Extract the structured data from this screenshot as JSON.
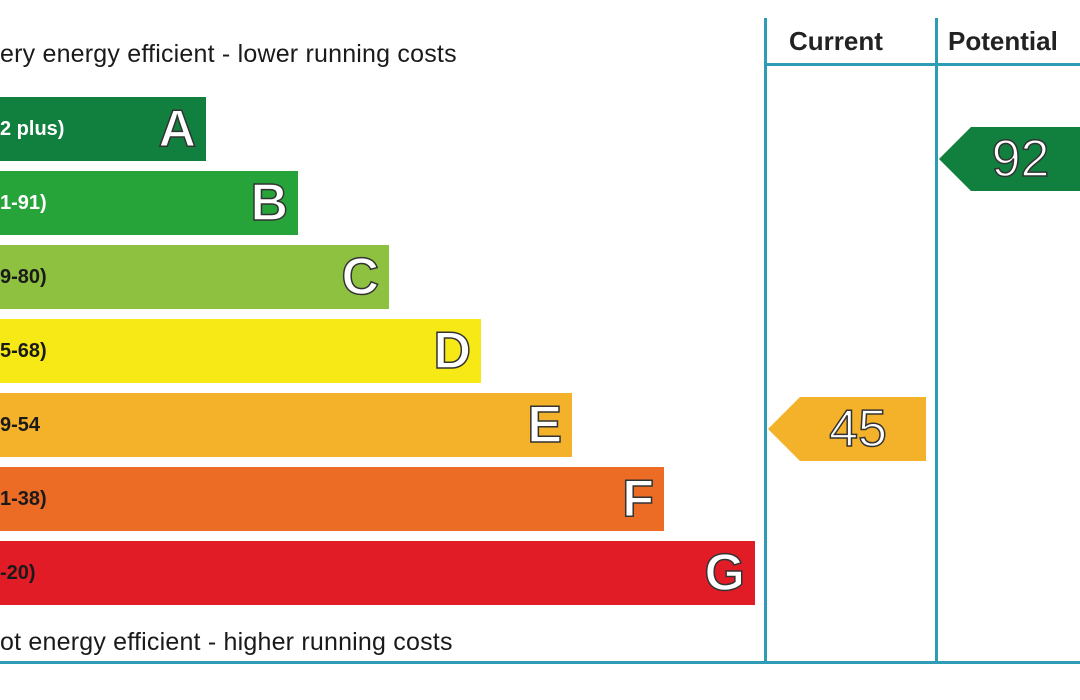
{
  "chart_data": {
    "type": "bar",
    "captions": {
      "top": "ery energy efficient - lower running costs",
      "bottom": "ot energy efficient - higher running costs"
    },
    "bands": [
      {
        "letter": "A",
        "range": "2 plus)",
        "color": "#117f3e",
        "range_color": "#ffffff"
      },
      {
        "letter": "B",
        "range": "1-91)",
        "color": "#26a43a",
        "range_color": "#ffffff"
      },
      {
        "letter": "C",
        "range": "9-80)",
        "color": "#8dc13f",
        "range_color": "#1a1a1a"
      },
      {
        "letter": "D",
        "range": "5-68)",
        "color": "#f7e916",
        "range_color": "#1a1a1a"
      },
      {
        "letter": "E",
        "range": "9-54",
        "color": "#f4b12a",
        "range_color": "#1a1a1a"
      },
      {
        "letter": "F",
        "range": "1-38)",
        "color": "#ec6b25",
        "range_color": "#1a1a1a"
      },
      {
        "letter": "G",
        "range": "-20)",
        "color": "#e21c26",
        "range_color": "#1a1a1a"
      }
    ],
    "columns": {
      "current": "Current",
      "potential": "Potential"
    },
    "ratings": {
      "current": {
        "value": "45",
        "band": "E",
        "color": "#f4b12a"
      },
      "potential": {
        "value": "92",
        "band": "A",
        "color": "#117f3e"
      }
    }
  }
}
